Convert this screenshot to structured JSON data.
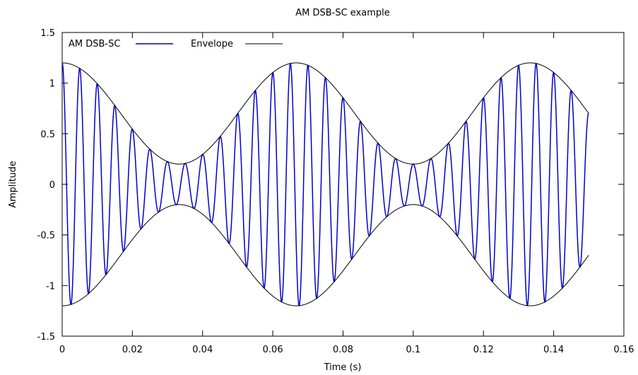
{
  "chart_data": {
    "type": "line",
    "title": "AM DSB-SC example",
    "xlabel": "Time (s)",
    "ylabel": "Amplitude",
    "xlim": [
      0,
      0.16
    ],
    "ylim": [
      -1.5,
      1.5
    ],
    "x_ticks": [
      0,
      0.02,
      0.04,
      0.06,
      0.08,
      0.1,
      0.12,
      0.14,
      0.16
    ],
    "x_tick_labels": [
      "0",
      "0.02",
      "0.04",
      "0.06",
      "0.08",
      "0.1",
      "0.12",
      "0.14",
      "0.16"
    ],
    "y_ticks": [
      -1.5,
      -1,
      -0.5,
      0,
      0.5,
      1,
      1.5
    ],
    "y_tick_labels": [
      "-1.5",
      "-1",
      "-0.5",
      "0",
      "0.5",
      "1",
      "1.5"
    ],
    "grid": false,
    "legend_position": "top-left",
    "x_range": [
      0,
      0.15
    ],
    "signal": {
      "amplitude_offset": 0.7,
      "modulation_amplitude": 0.5,
      "modulation_frequency_hz": 15,
      "carrier_frequency_hz": 200
    },
    "series": [
      {
        "name": "AM DSB-SC",
        "color": "#0000cc",
        "expression": "(0.7 + 0.5*cos(2*pi*15*t)) * cos(2*pi*200*t)"
      },
      {
        "name": "Envelope",
        "color": "#000000",
        "expression": "±(0.7 + 0.5*cos(2*pi*15*t))"
      }
    ]
  }
}
